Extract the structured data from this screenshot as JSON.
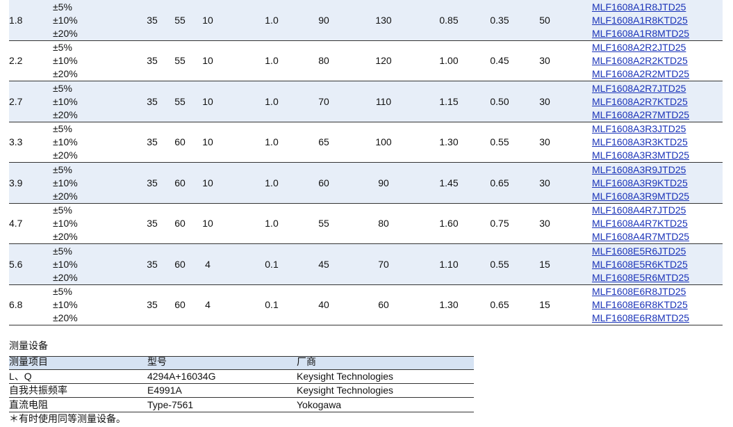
{
  "table": {
    "rows": [
      {
        "inductance": "1.8",
        "tolerances": [
          "±5%",
          "±10%",
          "±20%"
        ],
        "cells": [
          "35",
          "55",
          "10",
          "1.0",
          "90",
          "130",
          "0.85",
          "0.35",
          "50"
        ],
        "parts": [
          "MLF1608A1R8JTD25",
          "MLF1608A1R8KTD25",
          "MLF1608A1R8MTD25"
        ]
      },
      {
        "inductance": "2.2",
        "tolerances": [
          "±5%",
          "±10%",
          "±20%"
        ],
        "cells": [
          "35",
          "55",
          "10",
          "1.0",
          "80",
          "120",
          "1.00",
          "0.45",
          "30"
        ],
        "parts": [
          "MLF1608A2R2JTD25",
          "MLF1608A2R2KTD25",
          "MLF1608A2R2MTD25"
        ]
      },
      {
        "inductance": "2.7",
        "tolerances": [
          "±5%",
          "±10%",
          "±20%"
        ],
        "cells": [
          "35",
          "55",
          "10",
          "1.0",
          "70",
          "110",
          "1.15",
          "0.50",
          "30"
        ],
        "parts": [
          "MLF1608A2R7JTD25",
          "MLF1608A2R7KTD25",
          "MLF1608A2R7MTD25"
        ]
      },
      {
        "inductance": "3.3",
        "tolerances": [
          "±5%",
          "±10%",
          "±20%"
        ],
        "cells": [
          "35",
          "60",
          "10",
          "1.0",
          "65",
          "100",
          "1.30",
          "0.55",
          "30"
        ],
        "parts": [
          "MLF1608A3R3JTD25",
          "MLF1608A3R3KTD25",
          "MLF1608A3R3MTD25"
        ]
      },
      {
        "inductance": "3.9",
        "tolerances": [
          "±5%",
          "±10%",
          "±20%"
        ],
        "cells": [
          "35",
          "60",
          "10",
          "1.0",
          "60",
          "90",
          "1.45",
          "0.65",
          "30"
        ],
        "parts": [
          "MLF1608A3R9JTD25",
          "MLF1608A3R9KTD25",
          "MLF1608A3R9MTD25"
        ]
      },
      {
        "inductance": "4.7",
        "tolerances": [
          "±5%",
          "±10%",
          "±20%"
        ],
        "cells": [
          "35",
          "60",
          "10",
          "1.0",
          "55",
          "80",
          "1.60",
          "0.75",
          "30"
        ],
        "parts": [
          "MLF1608A4R7JTD25",
          "MLF1608A4R7KTD25",
          "MLF1608A4R7MTD25"
        ]
      },
      {
        "inductance": "5.6",
        "tolerances": [
          "±5%",
          "±10%",
          "±20%"
        ],
        "cells": [
          "35",
          "60",
          "4",
          "0.1",
          "45",
          "70",
          "1.10",
          "0.55",
          "15"
        ],
        "parts": [
          "MLF1608E5R6JTD25",
          "MLF1608E5R6KTD25",
          "MLF1608E5R6MTD25"
        ]
      },
      {
        "inductance": "6.8",
        "tolerances": [
          "±5%",
          "±10%",
          "±20%"
        ],
        "cells": [
          "35",
          "60",
          "4",
          "0.1",
          "40",
          "60",
          "1.30",
          "0.65",
          "15"
        ],
        "parts": [
          "MLF1608E6R8JTD25",
          "MLF1608E6R8KTD25",
          "MLF1608E6R8MTD25"
        ]
      }
    ]
  },
  "equipment": {
    "title": "测量设备",
    "header": [
      "测量项目",
      "型号",
      "厂商"
    ],
    "rows": [
      [
        "L、Q",
        "4294A+16034G",
        "Keysight Technologies"
      ],
      [
        "自我共振频率",
        "E4991A",
        "Keysight Technologies"
      ],
      [
        "直流电阻",
        "Type-7561",
        "Yokogawa"
      ]
    ]
  },
  "footnote": "＊有时使用同等测量设备。"
}
